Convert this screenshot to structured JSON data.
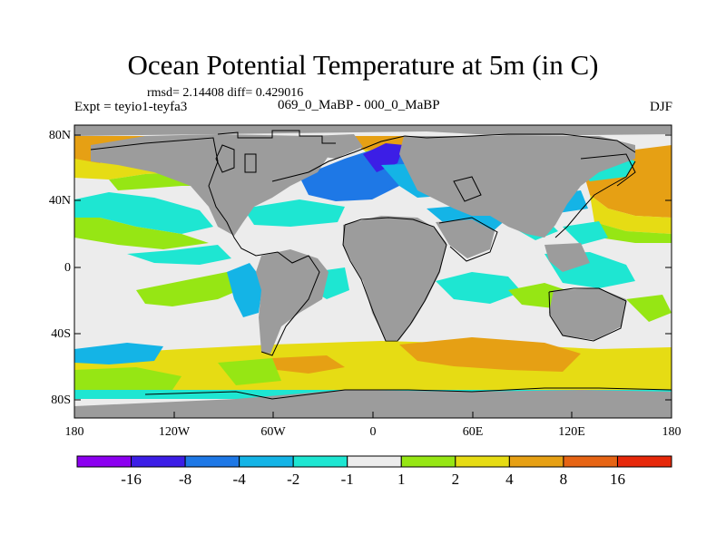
{
  "title": "Ocean Potential Temperature at 5m (in C)",
  "stats": "rmsd= 2.14408 diff= 0.429016",
  "experiment": "Expt = teyio1-teyfa3",
  "period": "069_0_MaBP - 000_0_MaBP",
  "season": "DJF",
  "lat_labels": [
    "80N",
    "40N",
    "0",
    "40S",
    "80S"
  ],
  "lon_labels": [
    "180",
    "120W",
    "60W",
    "0",
    "60E",
    "120E",
    "180"
  ],
  "colorbar": {
    "labels": [
      "-16",
      "-8",
      "-4",
      "-2",
      "-1",
      "1",
      "2",
      "4",
      "8",
      "16"
    ],
    "colors": [
      "#8c00f0",
      "#3c1ee6",
      "#1e78e6",
      "#14b4e6",
      "#1ee6d2",
      "#ececec",
      "#96e614",
      "#e6dc14",
      "#e6a014",
      "#e66414",
      "#e6280a"
    ]
  },
  "colors": {
    "land": "#9c9c9c",
    "neutral": "#ececec",
    "coastline": "#000000"
  }
}
